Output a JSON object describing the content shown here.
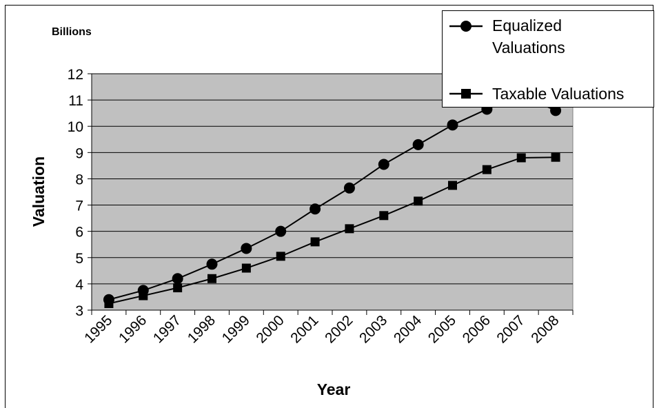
{
  "chart_data": {
    "type": "line",
    "unit_label": "Billions",
    "xlabel": "Year",
    "ylabel": "Valuation",
    "categories": [
      "1995",
      "1996",
      "1997",
      "1998",
      "1999",
      "2000",
      "2001",
      "2002",
      "2003",
      "2004",
      "2005",
      "2006",
      "2007",
      "2008"
    ],
    "ylim": [
      3,
      12
    ],
    "yticks": [
      3,
      4,
      5,
      6,
      7,
      8,
      9,
      10,
      11,
      12
    ],
    "grid": true,
    "legend_position": "top-right",
    "plot_background": "#c0c0c0",
    "series": [
      {
        "name": "Equalized Valuations",
        "marker": "circle",
        "values": [
          3.4,
          3.75,
          4.2,
          4.75,
          5.35,
          6.0,
          6.85,
          7.65,
          8.55,
          9.3,
          10.05,
          10.65,
          11.2,
          10.6
        ]
      },
      {
        "name": "Taxable Valuations",
        "marker": "square",
        "values": [
          3.25,
          3.55,
          3.85,
          4.2,
          4.6,
          5.05,
          5.6,
          6.1,
          6.6,
          7.15,
          7.75,
          8.35,
          8.8,
          8.82
        ]
      }
    ]
  }
}
